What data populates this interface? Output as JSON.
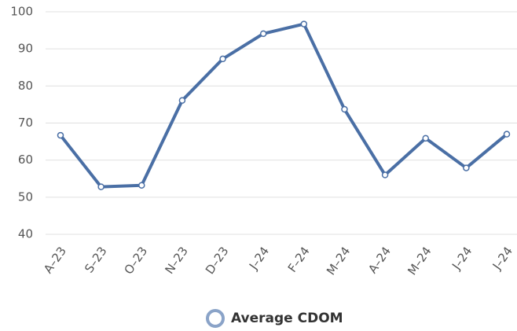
{
  "chart_data": {
    "type": "line",
    "categories": [
      "A–23",
      "S–23",
      "O–23",
      "N–23",
      "D–23",
      "J–24",
      "F–24",
      "M–24",
      "A–24",
      "M–24",
      "J–24",
      "J–24"
    ],
    "series": [
      {
        "name": "Average CDOM",
        "color": "#4a6fa5",
        "values": [
          66.7,
          52.8,
          53.2,
          76.1,
          87.3,
          94.1,
          96.7,
          73.7,
          56.0,
          65.9,
          57.9,
          67.0
        ]
      }
    ],
    "ylim": [
      40,
      100
    ],
    "yticks": [
      40,
      50,
      60,
      70,
      80,
      90,
      100
    ],
    "grid": true
  }
}
